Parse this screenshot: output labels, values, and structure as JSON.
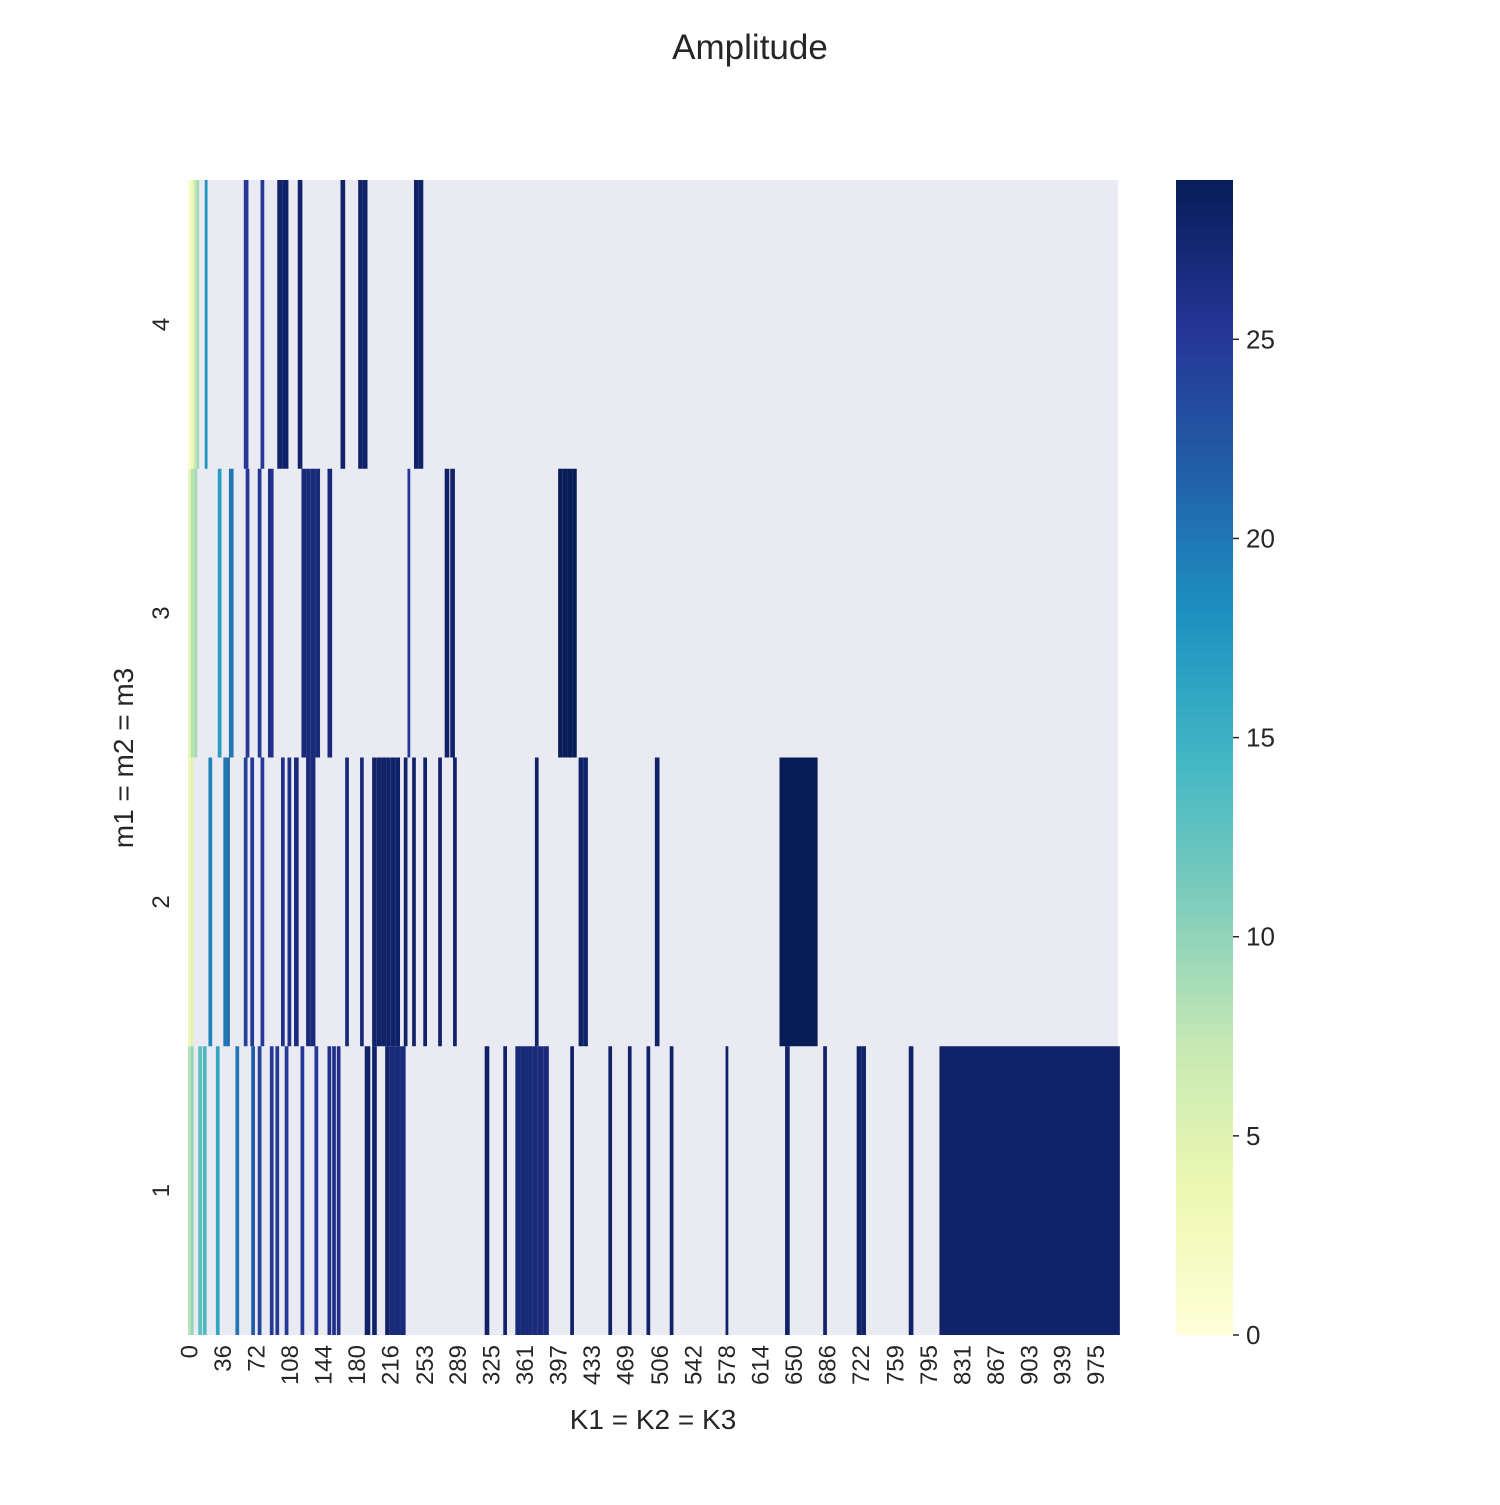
{
  "chart_data": {
    "type": "heatmap",
    "title": "Amplitude",
    "xlabel": "K1 = K2 = K3",
    "ylabel": "m1 = m2 = m3",
    "x_ticks": [
      "0",
      "36",
      "72",
      "108",
      "144",
      "180",
      "216",
      "253",
      "289",
      "325",
      "361",
      "397",
      "433",
      "469",
      "506",
      "542",
      "578",
      "614",
      "650",
      "686",
      "722",
      "759",
      "795",
      "831",
      "867",
      "903",
      "939",
      "975"
    ],
    "y_ticks": [
      "4",
      "3",
      "2",
      "1"
    ],
    "x_range": [
      0,
      1000
    ],
    "rows": [
      "4",
      "3",
      "2",
      "1"
    ],
    "colorbar": {
      "range": [
        0,
        29
      ],
      "ticks": [
        "0",
        "5",
        "10",
        "15",
        "20",
        "25"
      ],
      "tick_values": [
        0,
        5,
        10,
        15,
        20,
        25
      ],
      "colormap": "YlGnBu"
    },
    "missing_color": "#eaeaf2",
    "cells": {
      "4": [
        {
          "k": 0,
          "w": 3,
          "v": 1
        },
        {
          "k": 3,
          "w": 3,
          "v": 3
        },
        {
          "k": 6,
          "w": 3,
          "v": 7
        },
        {
          "k": 9,
          "w": 3,
          "v": 9
        },
        {
          "k": 18,
          "w": 3,
          "v": 18
        },
        {
          "k": 60,
          "w": 5,
          "v": 25
        },
        {
          "k": 78,
          "w": 4,
          "v": 25
        },
        {
          "k": 96,
          "w": 6,
          "v": 28
        },
        {
          "k": 102,
          "w": 6,
          "v": 28
        },
        {
          "k": 118,
          "w": 5,
          "v": 28
        },
        {
          "k": 164,
          "w": 5,
          "v": 28
        },
        {
          "k": 183,
          "w": 5,
          "v": 28
        },
        {
          "k": 188,
          "w": 5,
          "v": 28
        },
        {
          "k": 243,
          "w": 5,
          "v": 28
        },
        {
          "k": 248,
          "w": 5,
          "v": 28
        }
      ],
      "3": [
        {
          "k": 0,
          "w": 3,
          "v": 4
        },
        {
          "k": 3,
          "w": 4,
          "v": 8
        },
        {
          "k": 7,
          "w": 3,
          "v": 9
        },
        {
          "k": 32,
          "w": 4,
          "v": 17
        },
        {
          "k": 44,
          "w": 5,
          "v": 20
        },
        {
          "k": 62,
          "w": 4,
          "v": 25
        },
        {
          "k": 75,
          "w": 4,
          "v": 25
        },
        {
          "k": 86,
          "w": 6,
          "v": 26
        },
        {
          "k": 122,
          "w": 5,
          "v": 27
        },
        {
          "k": 127,
          "w": 5,
          "v": 27
        },
        {
          "k": 132,
          "w": 5,
          "v": 27
        },
        {
          "k": 137,
          "w": 5,
          "v": 27
        },
        {
          "k": 150,
          "w": 5,
          "v": 27
        },
        {
          "k": 236,
          "w": 3,
          "v": 25
        },
        {
          "k": 276,
          "w": 5,
          "v": 28
        },
        {
          "k": 282,
          "w": 5,
          "v": 28
        },
        {
          "k": 398,
          "w": 5,
          "v": 29
        },
        {
          "k": 403,
          "w": 5,
          "v": 29
        },
        {
          "k": 408,
          "w": 5,
          "v": 29
        },
        {
          "k": 413,
          "w": 5,
          "v": 29
        }
      ],
      "2": [
        {
          "k": 0,
          "w": 3,
          "v": 3
        },
        {
          "k": 3,
          "w": 3,
          "v": 5
        },
        {
          "k": 22,
          "w": 4,
          "v": 19
        },
        {
          "k": 38,
          "w": 4,
          "v": 20
        },
        {
          "k": 42,
          "w": 3,
          "v": 21
        },
        {
          "k": 60,
          "w": 4,
          "v": 24
        },
        {
          "k": 67,
          "w": 4,
          "v": 25
        },
        {
          "k": 78,
          "w": 4,
          "v": 25
        },
        {
          "k": 100,
          "w": 4,
          "v": 26
        },
        {
          "k": 107,
          "w": 4,
          "v": 26
        },
        {
          "k": 114,
          "w": 5,
          "v": 27
        },
        {
          "k": 127,
          "w": 5,
          "v": 27
        },
        {
          "k": 132,
          "w": 5,
          "v": 27
        },
        {
          "k": 169,
          "w": 4,
          "v": 27
        },
        {
          "k": 185,
          "w": 4,
          "v": 27
        },
        {
          "k": 198,
          "w": 5,
          "v": 28
        },
        {
          "k": 203,
          "w": 5,
          "v": 28
        },
        {
          "k": 208,
          "w": 5,
          "v": 28
        },
        {
          "k": 213,
          "w": 5,
          "v": 28
        },
        {
          "k": 218,
          "w": 5,
          "v": 28
        },
        {
          "k": 223,
          "w": 5,
          "v": 28
        },
        {
          "k": 232,
          "w": 4,
          "v": 28
        },
        {
          "k": 241,
          "w": 4,
          "v": 28
        },
        {
          "k": 253,
          "w": 4,
          "v": 28
        },
        {
          "k": 269,
          "w": 4,
          "v": 28
        },
        {
          "k": 285,
          "w": 4,
          "v": 28
        },
        {
          "k": 373,
          "w": 4,
          "v": 28
        },
        {
          "k": 420,
          "w": 5,
          "v": 28
        },
        {
          "k": 425,
          "w": 5,
          "v": 28
        },
        {
          "k": 502,
          "w": 5,
          "v": 28
        },
        {
          "k": 636,
          "w": 41,
          "v": 29
        }
      ],
      "1": [
        {
          "k": 0,
          "w": 3,
          "v": 8
        },
        {
          "k": 3,
          "w": 3,
          "v": 10
        },
        {
          "k": 11,
          "w": 4,
          "v": 13
        },
        {
          "k": 16,
          "w": 4,
          "v": 14
        },
        {
          "k": 30,
          "w": 4,
          "v": 16
        },
        {
          "k": 51,
          "w": 4,
          "v": 20
        },
        {
          "k": 68,
          "w": 4,
          "v": 22
        },
        {
          "k": 75,
          "w": 4,
          "v": 24
        },
        {
          "k": 88,
          "w": 4,
          "v": 25
        },
        {
          "k": 94,
          "w": 4,
          "v": 25
        },
        {
          "k": 104,
          "w": 4,
          "v": 25
        },
        {
          "k": 121,
          "w": 4,
          "v": 25
        },
        {
          "k": 136,
          "w": 4,
          "v": 25
        },
        {
          "k": 150,
          "w": 4,
          "v": 26
        },
        {
          "k": 155,
          "w": 4,
          "v": 26
        },
        {
          "k": 160,
          "w": 4,
          "v": 26
        },
        {
          "k": 190,
          "w": 6,
          "v": 28
        },
        {
          "k": 198,
          "w": 5,
          "v": 28
        },
        {
          "k": 212,
          "w": 5,
          "v": 28
        },
        {
          "k": 217,
          "w": 5,
          "v": 27
        },
        {
          "k": 222,
          "w": 6,
          "v": 27
        },
        {
          "k": 228,
          "w": 6,
          "v": 27
        },
        {
          "k": 319,
          "w": 5,
          "v": 28
        },
        {
          "k": 339,
          "w": 4,
          "v": 28
        },
        {
          "k": 352,
          "w": 6,
          "v": 27
        },
        {
          "k": 358,
          "w": 6,
          "v": 27
        },
        {
          "k": 364,
          "w": 6,
          "v": 27
        },
        {
          "k": 370,
          "w": 6,
          "v": 27
        },
        {
          "k": 376,
          "w": 6,
          "v": 27
        },
        {
          "k": 382,
          "w": 6,
          "v": 27
        },
        {
          "k": 411,
          "w": 4,
          "v": 28
        },
        {
          "k": 452,
          "w": 4,
          "v": 28
        },
        {
          "k": 473,
          "w": 4,
          "v": 28
        },
        {
          "k": 493,
          "w": 4,
          "v": 28
        },
        {
          "k": 518,
          "w": 4,
          "v": 28
        },
        {
          "k": 578,
          "w": 3,
          "v": 28
        },
        {
          "k": 642,
          "w": 5,
          "v": 28
        },
        {
          "k": 683,
          "w": 4,
          "v": 28
        },
        {
          "k": 719,
          "w": 5,
          "v": 28
        },
        {
          "k": 724,
          "w": 5,
          "v": 28
        },
        {
          "k": 775,
          "w": 5,
          "v": 28
        },
        {
          "k": 808,
          "w": 194,
          "v": 28
        }
      ]
    }
  }
}
